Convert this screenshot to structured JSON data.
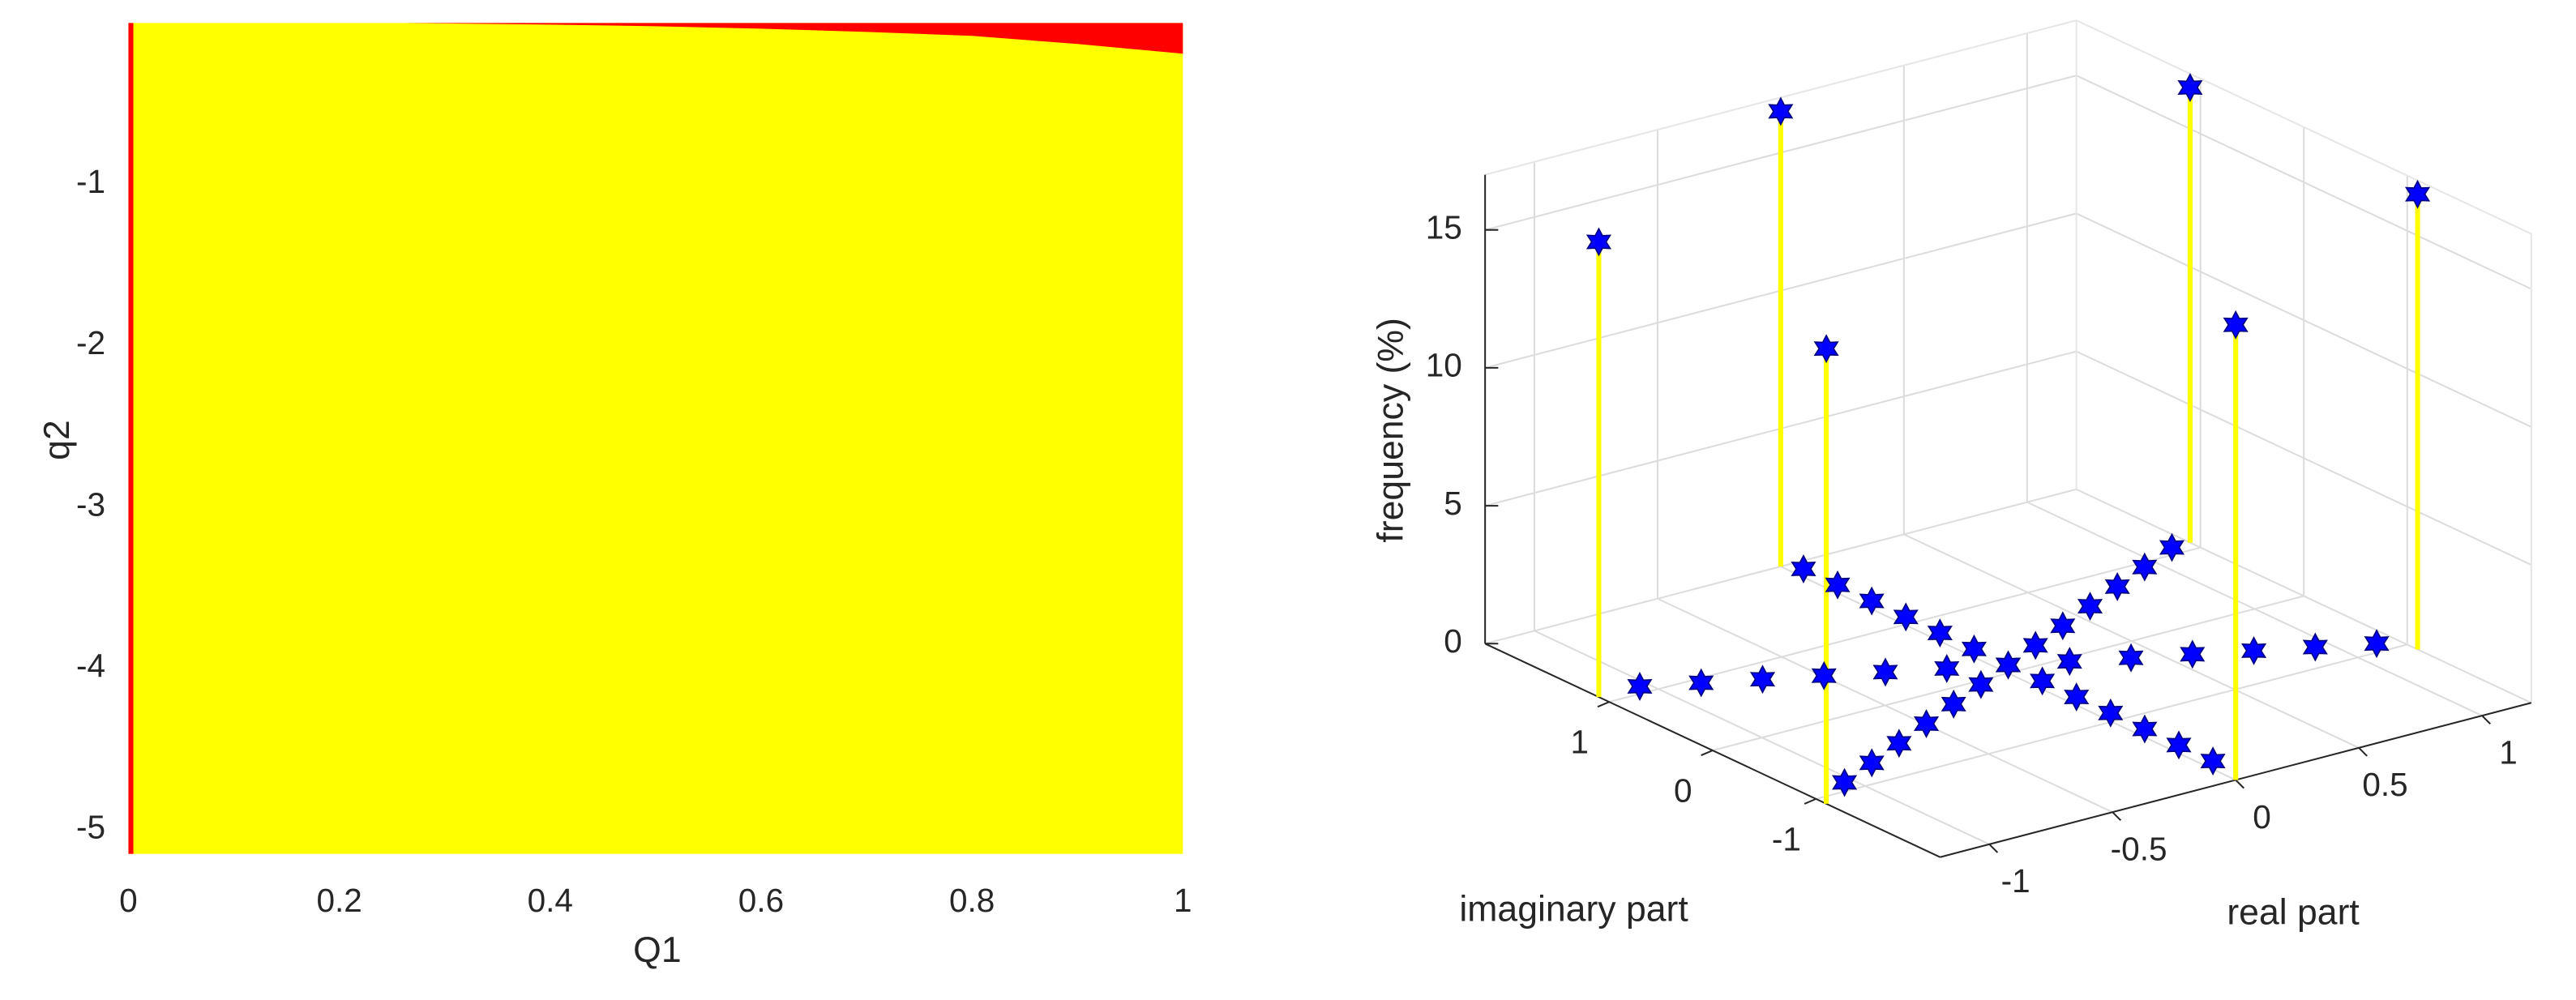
{
  "chart_data": [
    {
      "type": "region",
      "xlabel": "Q1",
      "ylabel": "q2",
      "xlim": [
        0,
        1
      ],
      "ylim": [
        -5.15,
        0
      ],
      "xticks": [
        0,
        0.2,
        0.4,
        0.6,
        0.8,
        1
      ],
      "yticks": [
        -1,
        -2,
        -3,
        -4,
        -5
      ],
      "fill_color": "#ffff00",
      "region_color": "#ff0000",
      "boundary": {
        "x": [
          0.26,
          0.4,
          0.5,
          0.6,
          0.7,
          0.8,
          0.9,
          1
        ],
        "y": [
          0,
          -0.01,
          -0.02,
          -0.035,
          -0.055,
          -0.08,
          -0.13,
          -0.19
        ]
      }
    },
    {
      "type": "stem3",
      "xlabel": "real part",
      "ylabel": "imaginary part",
      "zlabel": "frequency (%)",
      "xlim": [
        -1.2,
        1.2
      ],
      "ylim": [
        -2.2,
        2.2
      ],
      "zlim": [
        0,
        17
      ],
      "xticks": [
        -1,
        -0.5,
        0,
        0.5,
        1
      ],
      "yticks": [
        -1,
        0,
        1
      ],
      "zticks": [
        0,
        5,
        10,
        15
      ],
      "grid": true,
      "stem_color": "#ffff00",
      "marker_color": "#0000ff",
      "series": [
        {
          "x": [
            -1.2,
            1.2,
            0,
            0,
            -1.2,
            1.2
          ],
          "y": [
            1.1,
            -1.1,
            2.2,
            -2.2,
            -1.1,
            1.1
          ],
          "z": [
            16.5,
            16.5,
            16.5,
            16.5,
            16.5,
            16.5
          ]
        },
        {
          "x": [
            -1.08,
            -0.9,
            -0.72,
            -0.54,
            -0.36,
            -0.18,
            0,
            0.18,
            0.36,
            0.54,
            0.72,
            0.9,
            1.08,
            0,
            0,
            0,
            0,
            0,
            0,
            0,
            0,
            0,
            0,
            0,
            0,
            0,
            -1.08,
            -0.9,
            -0.72,
            -0.54,
            -0.36,
            -0.18,
            0,
            0.18,
            0.36,
            0.54,
            0.72,
            0.9,
            1.08
          ],
          "y": [
            0.99,
            0.825,
            0.66,
            0.495,
            0.33,
            0.165,
            0,
            -0.165,
            -0.33,
            -0.495,
            -0.66,
            -0.825,
            -0.99,
            -1.98,
            -1.65,
            -1.32,
            -0.99,
            -0.66,
            -0.33,
            0,
            0.33,
            0.66,
            0.99,
            1.32,
            1.65,
            1.98,
            -0.99,
            -0.825,
            -0.66,
            -0.495,
            -0.33,
            -0.165,
            0,
            0.165,
            0.33,
            0.495,
            0.66,
            0.825,
            0.99
          ],
          "z": [
            0.3,
            0.3,
            0.3,
            0.3,
            0.3,
            0.3,
            0.3,
            0.3,
            0.3,
            0.3,
            0.3,
            0.3,
            0.3,
            0.3,
            0.3,
            0.3,
            0.3,
            0.3,
            0.3,
            0.3,
            0.3,
            0.3,
            0.3,
            0.3,
            0.3,
            0.3,
            0.3,
            0.3,
            0.3,
            0.3,
            0.3,
            0.3,
            0.3,
            0.3,
            0.3,
            0.3,
            0.3,
            0.3,
            0.3
          ]
        }
      ]
    }
  ]
}
